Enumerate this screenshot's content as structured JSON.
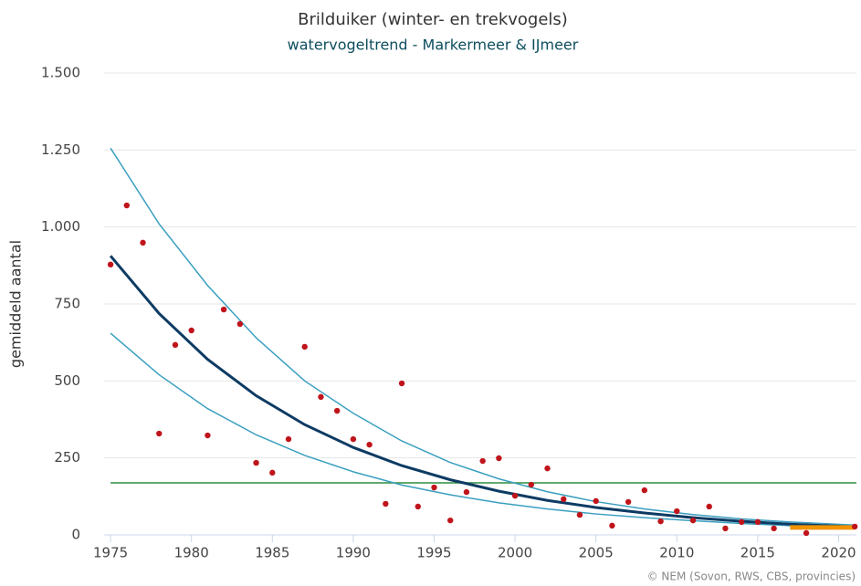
{
  "chart_data": {
    "type": "scatter",
    "title": "Brilduiker (winter- en trekvogels)",
    "subtitle": "watervogeltrend - Markermeer & IJmeer",
    "y_label": "gemiddeld aantal",
    "credits": "© NEM (Sovon, RWS, CBS, provincies)",
    "xlim": [
      1974.6,
      2021.1
    ],
    "ylim": [
      0,
      1500
    ],
    "xticks": [
      1975,
      1980,
      1985,
      1990,
      1995,
      2000,
      2005,
      2010,
      2015,
      2020
    ],
    "yticks": [
      0,
      250,
      500,
      750,
      {
        "value": 1000,
        "label": "1.000"
      },
      {
        "value": 1250,
        "label": "1.250"
      },
      {
        "value": 1500,
        "label": "1.500"
      }
    ],
    "grid": true,
    "points": {
      "color": "#c0141b",
      "x": [
        1975,
        1976,
        1977,
        1978,
        1979,
        1980,
        1981,
        1982,
        1983,
        1984,
        1985,
        1986,
        1987,
        1988,
        1989,
        1990,
        1991,
        1992,
        1993,
        1994,
        1995,
        1996,
        1997,
        1998,
        1999,
        2000,
        2001,
        2002,
        2003,
        2004,
        2005,
        2006,
        2007,
        2008,
        2009,
        2010,
        2011,
        2012,
        2013,
        2014,
        2015,
        2016,
        2018,
        2021
      ],
      "values": [
        878,
        1070,
        949,
        329,
        617,
        664,
        323,
        732,
        685,
        234,
        202,
        311,
        611,
        448,
        403,
        311,
        293,
        101,
        492,
        92,
        154,
        47,
        139,
        240,
        249,
        127,
        163,
        216,
        116,
        65,
        110,
        30,
        107,
        145,
        44,
        77,
        47,
        92,
        21,
        42,
        42,
        21,
        6,
        27
      ]
    },
    "lines": [
      {
        "color": "#3a9fc0",
        "width": 1.5,
        "x": [
          1975,
          1978,
          1981,
          1984,
          1987,
          1990,
          1993,
          1996,
          1999,
          2002,
          2005,
          2008,
          2011,
          2014,
          2017,
          2021
        ],
        "values": [
          1256,
          1010,
          810,
          640,
          500,
          395,
          305,
          235,
          182,
          140,
          108,
          84,
          66,
          52,
          42,
          32
        ]
      },
      {
        "color": "#3a9fc0",
        "width": 1.5,
        "x": [
          1975,
          1978,
          1981,
          1984,
          1987,
          1990,
          1993,
          1996,
          1999,
          2002,
          2005,
          2008,
          2011,
          2014,
          2017,
          2021
        ],
        "values": [
          655,
          520,
          410,
          325,
          258,
          205,
          162,
          130,
          104,
          84,
          68,
          56,
          46,
          37,
          30,
          22
        ]
      },
      {
        "color": "#0d3b63",
        "width": 3,
        "x": [
          1975,
          1978,
          1981,
          1984,
          1987,
          1990,
          1993,
          1996,
          1999,
          2002,
          2005,
          2008,
          2011,
          2014,
          2017,
          2021
        ],
        "values": [
          906,
          719,
          570,
          452,
          358,
          284,
          225,
          179,
          142,
          112,
          89,
          71,
          56,
          44,
          35,
          26
        ]
      },
      {
        "color": "#f29400",
        "width": 5,
        "x": [
          2017,
          2021
        ],
        "values": [
          24,
          24
        ]
      }
    ],
    "reference_line": {
      "value": 169,
      "color": "#2e8b3e"
    }
  }
}
